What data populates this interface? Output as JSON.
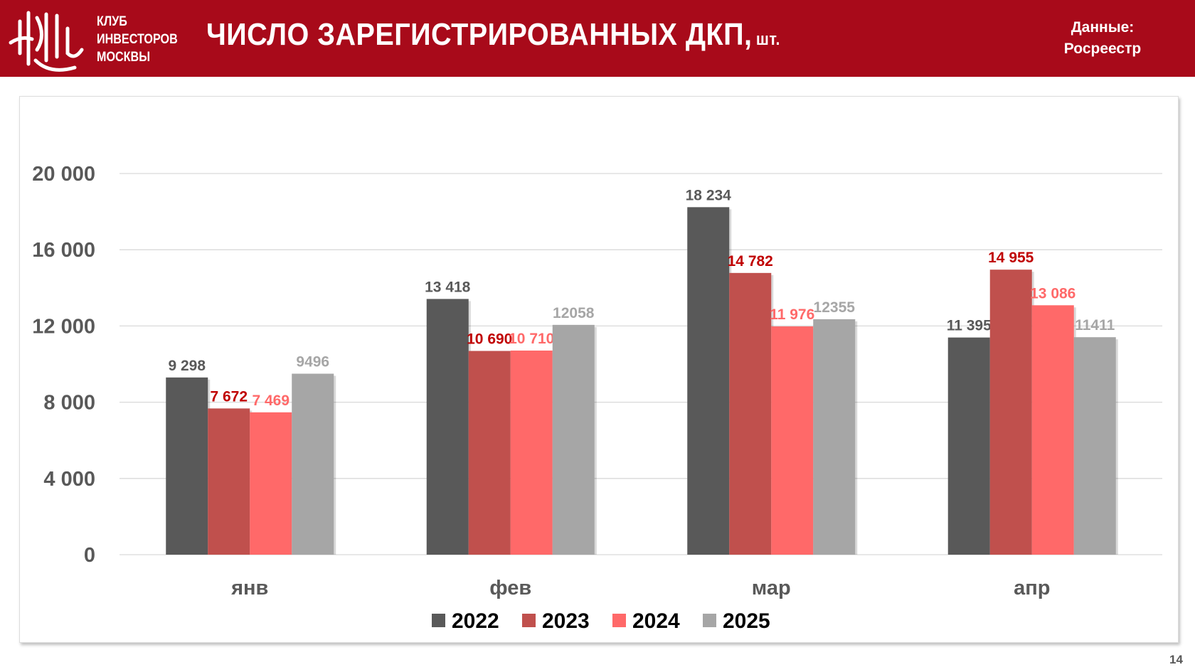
{
  "header": {
    "club_lines": [
      "КЛУБ",
      "ИНВЕСТОРОВ",
      "МОСКВЫ"
    ],
    "title": "ЧИСЛО ЗАРЕГИСТРИРОВАННЫХ ДКП,",
    "unit": "шт.",
    "source_label": "Данные:",
    "source_value": "Росреестр"
  },
  "page_number": "14",
  "chart_data": {
    "type": "bar",
    "title": "ЧИСЛО ЗАРЕГИСТРИРОВАННЫХ ДКП, шт.",
    "categories": [
      "янв",
      "фев",
      "мар",
      "апр"
    ],
    "ylim": [
      0,
      20000
    ],
    "yticks": [
      0,
      4000,
      8000,
      12000,
      16000,
      20000
    ],
    "ytick_labels": [
      "0",
      "4 000",
      "8 000",
      "12 000",
      "16 000",
      "20 000"
    ],
    "grid": true,
    "legend_position": "bottom",
    "series": [
      {
        "name": "2022",
        "color": "#595959",
        "label_color": "#595959",
        "values": [
          9298,
          13418,
          18234,
          11395
        ],
        "labels": [
          "9 298",
          "13 418",
          "18 234",
          "11 395"
        ]
      },
      {
        "name": "2023",
        "color": "#C0504D",
        "label_color": "#C00000",
        "values": [
          7672,
          10690,
          14782,
          14955
        ],
        "labels": [
          "7 672",
          "10 690",
          "14 782",
          "14 955"
        ]
      },
      {
        "name": "2024",
        "color": "#FF6969",
        "label_color": "#FF6969",
        "values": [
          7469,
          10710,
          11976,
          13086
        ],
        "labels": [
          "7 469",
          "10 710",
          "11 976",
          "13 086"
        ]
      },
      {
        "name": "2025",
        "color": "#A6A6A6",
        "label_color": "#A6A6A6",
        "values": [
          9496,
          12058,
          12355,
          11411
        ],
        "labels": [
          "9496",
          "12058",
          "12355",
          "11411"
        ]
      }
    ]
  }
}
